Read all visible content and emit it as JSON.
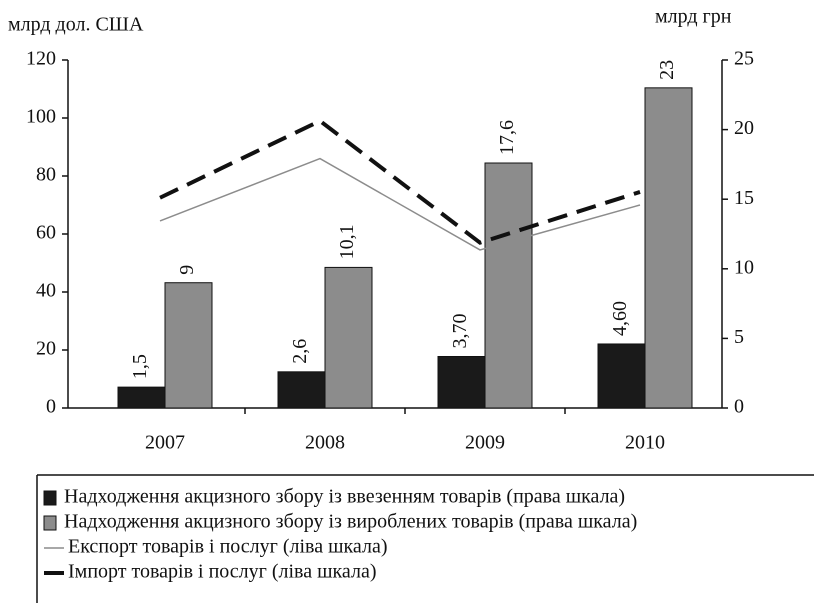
{
  "chart_data": {
    "type": "bar",
    "y_label": "млрд дол. США",
    "y2_label": "млрд грн",
    "categories": [
      "2007",
      "2008",
      "2009",
      "2010"
    ],
    "ylim": [
      0,
      120
    ],
    "yticks": [
      0,
      20,
      40,
      60,
      80,
      100,
      120
    ],
    "y2lim": [
      0,
      25
    ],
    "y2ticks": [
      0,
      5,
      10,
      15,
      20,
      25
    ],
    "series": [
      {
        "name": "Надходження акцизного збору із ввезенням товарів (права шкала)",
        "type": "bar",
        "axis": "y2",
        "color": "#1a1a1a",
        "values": [
          1.5,
          2.6,
          3.7,
          4.6
        ],
        "value_labels": [
          "1,5",
          "2,6",
          "3,70",
          "4,60"
        ]
      },
      {
        "name": "Надходження акцизного збору із вироблених товарів (права шкала)",
        "type": "bar",
        "axis": "y2",
        "color": "#8c8c8c",
        "values": [
          9,
          10.1,
          17.6,
          23
        ],
        "value_labels": [
          "9",
          "10,1",
          "17,6",
          "23"
        ]
      },
      {
        "name": "Експорт товарів і послуг (ліва шкала)",
        "type": "line",
        "color": "#8c8c8c",
        "values": [
          64.5,
          86,
          54.5,
          70
        ]
      },
      {
        "name": "Імпорт товарів і послуг (ліва шкала)",
        "type": "line",
        "dashed": true,
        "color": "#111111",
        "values": [
          72.5,
          99,
          57,
          74.5
        ]
      }
    ]
  }
}
